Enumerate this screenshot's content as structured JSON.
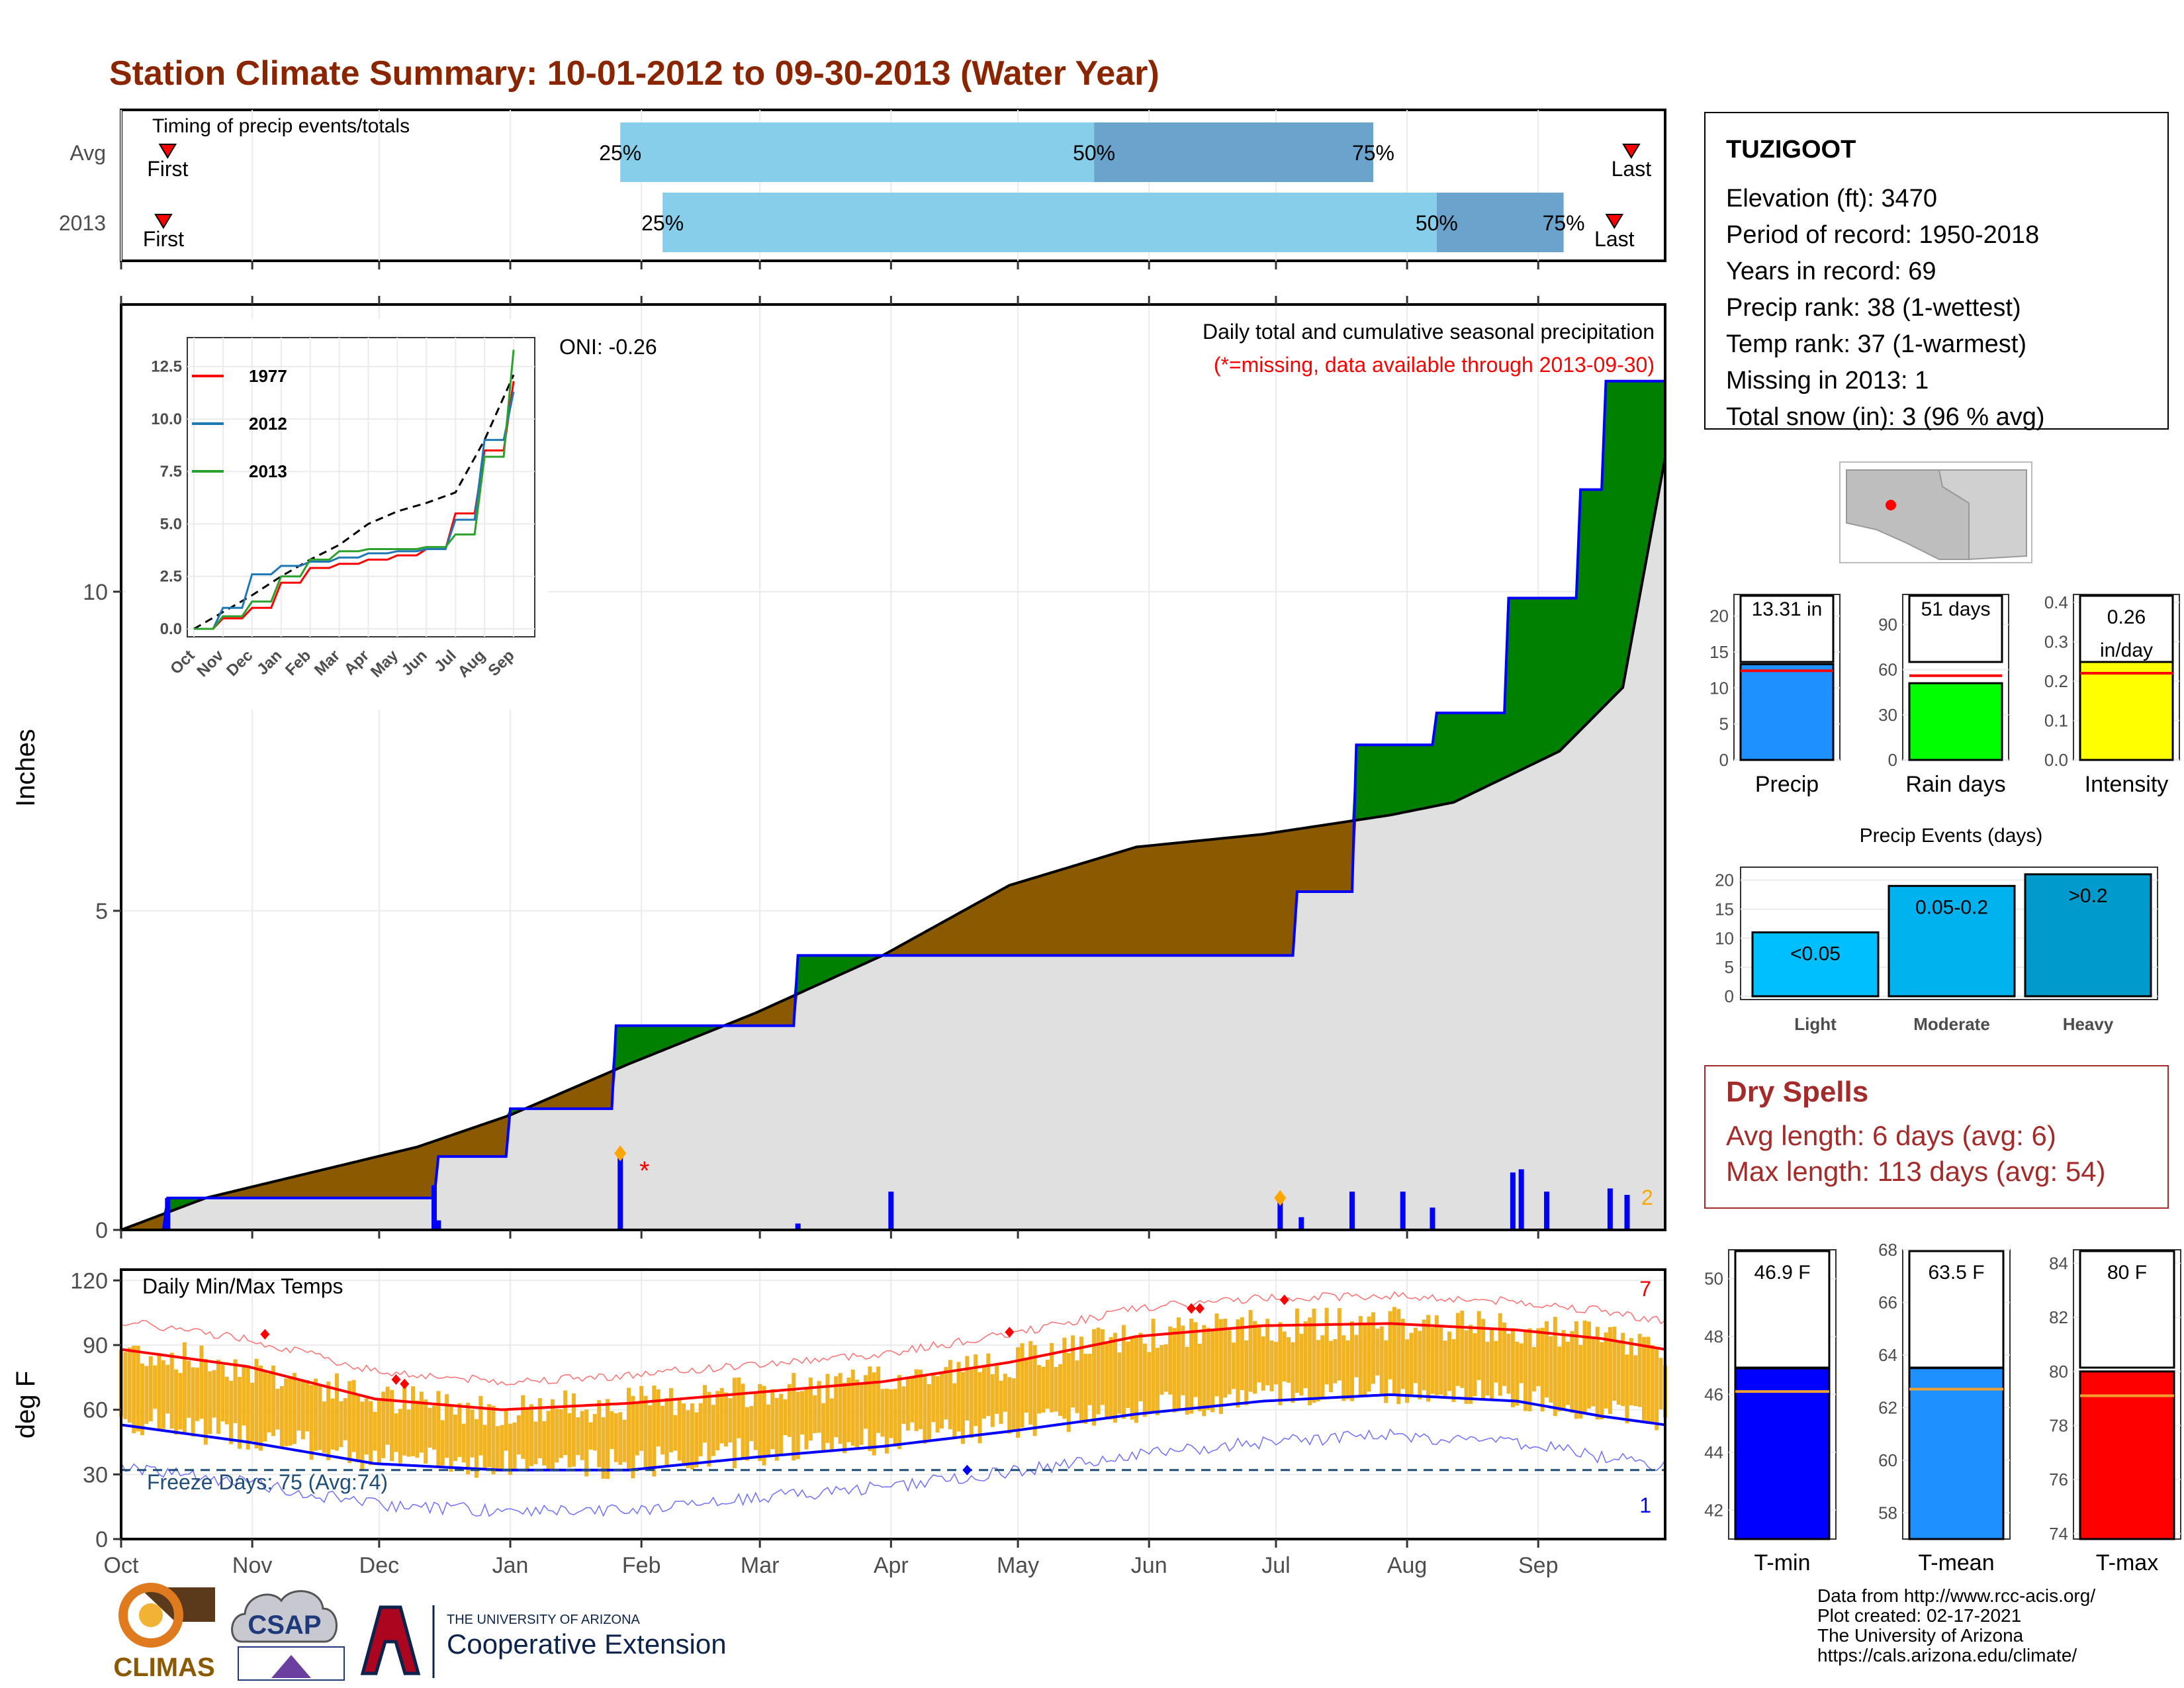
{
  "title": "Station Climate Summary: 10-01-2012 to 09-30-2013 (Water Year)",
  "colors": {
    "title": "#8b2500",
    "cum_fill": "#8b5a00",
    "wet_fill": "#008000",
    "bg_fill": "#e0e0e0",
    "precip_bar": "#0000ff",
    "tmax": "#ff0000",
    "tmin": "#0000ff",
    "range_bar": "#f0b323",
    "drought": "#a52a2a",
    "light_blue": "#87ceeb",
    "mid_blue": "#6aa4cc"
  },
  "timing": {
    "label": "Timing of precip events/totals",
    "rows": [
      {
        "name": "Avg",
        "first": "First",
        "last": "Last",
        "p25": "25%",
        "p50": "50%",
        "p75": "75%",
        "first_day": 11,
        "d25": 118,
        "d50": 230,
        "d75": 296,
        "last_day": 357
      },
      {
        "name": "2013",
        "first": "First",
        "last": "Last",
        "p25": "25%",
        "p50": "50%",
        "p75": "75%",
        "first_day": 10,
        "d25": 128,
        "d50": 311,
        "d75": 341,
        "last_day": 353
      }
    ]
  },
  "station": {
    "name": "TUZIGOOT",
    "lines": [
      "Elevation (ft): 3470",
      "Period of record: 1950-2018",
      "Years in record: 69",
      "Precip rank: 38 (1-wettest)",
      "Temp rank: 37 (1-warmest)",
      "Missing in 2013: 1",
      "Total snow (in): 3 (96 % avg)"
    ]
  },
  "precip_panel": {
    "title": "Daily total and cumulative seasonal precipitation",
    "subtitle": "(*=missing, data available through 2013-09-30)",
    "oni": "ONI: -0.26",
    "ylabel": "Inches",
    "corner_count": "2",
    "missing_mark": "*"
  },
  "temp_panel": {
    "title": "Daily Min/Max Temps",
    "ylabel": "deg F",
    "freeze": "Freeze Days: 75 (Avg:74)",
    "count_high": "7",
    "count_low": "1"
  },
  "x_months": [
    "Oct",
    "Nov",
    "Dec",
    "Jan",
    "Feb",
    "Mar",
    "Apr",
    "May",
    "Jun",
    "Jul",
    "Aug",
    "Sep"
  ],
  "inset": {
    "months": [
      "Oct",
      "Nov",
      "Dec",
      "Jan",
      "Feb",
      "Mar",
      "Apr",
      "May",
      "Jun",
      "Jul",
      "Aug",
      "Sep"
    ],
    "yticks": [
      "0.0",
      "2.5",
      "5.0",
      "7.5",
      "10.0",
      "12.5"
    ],
    "legend": [
      "1977",
      "2012",
      "2013"
    ]
  },
  "small_bars": [
    {
      "label": "Precip",
      "value_text": "13.31 in",
      "value": 13.31,
      "avg": 12.4,
      "color": "#1e90ff",
      "ymax": 23,
      "yticks": [
        "0",
        "5",
        "10",
        "15",
        "20"
      ]
    },
    {
      "label": "Rain days",
      "value_text": "51 days",
      "value": 51,
      "avg": 56,
      "color": "#00ff00",
      "ymax": 110,
      "yticks": [
        "0",
        "30",
        "60",
        "90"
      ]
    },
    {
      "label": "Intensity",
      "value_text": "0.26 in/day",
      "value": 0.26,
      "avg": 0.22,
      "color": "#ffff00",
      "ymax": 0.42,
      "yticks": [
        "0.0",
        "0.1",
        "0.2",
        "0.3",
        "0.4"
      ]
    }
  ],
  "events": {
    "title": "Precip Events (days)",
    "yticks": [
      "0",
      "5",
      "10",
      "15",
      "20"
    ],
    "bars": [
      {
        "category": "Light",
        "label": "<0.05",
        "value": 11,
        "color": "#00bfff"
      },
      {
        "category": "Moderate",
        "label": "0.05-0.2",
        "value": 19,
        "color": "#00b2ee"
      },
      {
        "category": "Heavy",
        "label": ">0.2",
        "value": 21,
        "color": "#009acd"
      }
    ]
  },
  "dry_spells": {
    "title": "Dry Spells",
    "avg": "Avg length: 6 days (avg: 6)",
    "max": "Max length: 113 days (avg: 54)"
  },
  "temp_bars": [
    {
      "label": "T-min",
      "value_text": "46.9 F",
      "value": 46.9,
      "avg": 46.1,
      "color": "#0000ff",
      "ymin": 41,
      "ymax": 51,
      "yticks": [
        "42",
        "44",
        "46",
        "48",
        "50"
      ]
    },
    {
      "label": "T-mean",
      "value_text": "63.5 F",
      "value": 63.5,
      "avg": 62.7,
      "color": "#1e90ff",
      "ymin": 57,
      "ymax": 68,
      "yticks": [
        "58",
        "60",
        "62",
        "64",
        "66",
        "68"
      ]
    },
    {
      "label": "T-max",
      "value_text": "80 F",
      "value": 80,
      "avg": 79.1,
      "color": "#ff0000",
      "ymin": 73.8,
      "ymax": 84.5,
      "yticks": [
        "74",
        "76",
        "78",
        "80",
        "82",
        "84"
      ]
    }
  ],
  "footer": {
    "lines": [
      "Data from http://www.rcc-acis.org/",
      "Plot created: 02-17-2021",
      "The University of Arizona",
      "https://cals.arizona.edu/climate/"
    ],
    "logo_climas": "CLIMAS",
    "logo_csap": "CSAP",
    "ua_small": "THE UNIVERSITY OF ARIZONA",
    "ua_big": "Cooperative Extension"
  },
  "chart_data": [
    {
      "type": "area",
      "title": "Daily total and cumulative seasonal precipitation",
      "ylabel": "Inches",
      "ylim": [
        0,
        14.5
      ],
      "x_days": [
        0,
        366
      ],
      "cumulative_avg": [
        [
          0,
          0
        ],
        [
          20,
          0.5
        ],
        [
          45,
          0.9
        ],
        [
          70,
          1.3
        ],
        [
          92,
          1.8
        ],
        [
          120,
          2.6
        ],
        [
          150,
          3.4
        ],
        [
          180,
          4.3
        ],
        [
          210,
          5.4
        ],
        [
          240,
          6.0
        ],
        [
          270,
          6.2
        ],
        [
          300,
          6.5
        ],
        [
          315,
          6.7
        ],
        [
          340,
          7.5
        ],
        [
          355,
          8.5
        ],
        [
          365,
          12.1
        ]
      ],
      "cumulative_2013": [
        [
          0,
          0
        ],
        [
          11,
          0
        ],
        [
          11,
          0.5
        ],
        [
          75,
          0.5
        ],
        [
          75,
          1.15
        ],
        [
          92,
          1.15
        ],
        [
          92,
          1.9
        ],
        [
          117,
          1.9
        ],
        [
          117,
          3.2
        ],
        [
          160,
          3.2
        ],
        [
          160,
          4.3
        ],
        [
          273,
          4.3
        ],
        [
          278,
          5.3
        ],
        [
          292,
          7.6
        ],
        [
          311,
          8.1
        ],
        [
          328,
          9.9
        ],
        [
          345,
          11.6
        ],
        [
          351,
          13.3
        ],
        [
          365,
          13.3
        ]
      ],
      "daily_precip": [
        [
          11,
          0.5
        ],
        [
          74,
          0.7
        ],
        [
          75,
          0.15
        ],
        [
          118,
          1.2
        ],
        [
          160,
          0.1
        ],
        [
          182,
          0.6
        ],
        [
          274,
          0.5
        ],
        [
          279,
          0.2
        ],
        [
          291,
          0.6
        ],
        [
          303,
          0.6
        ],
        [
          310,
          0.35
        ],
        [
          329,
          0.9
        ],
        [
          331,
          0.95
        ],
        [
          337,
          0.6
        ],
        [
          352,
          0.65
        ],
        [
          356,
          0.55
        ]
      ],
      "legend": []
    },
    {
      "type": "line",
      "title": "Daily Min/Max Temps",
      "ylabel": "deg F",
      "ylim": [
        0,
        120
      ],
      "freeze_line": 32,
      "series": [
        {
          "name": "",
          "values": [
            [
              0,
              88
            ],
            [
              30,
              80
            ],
            [
              60,
              65
            ],
            [
              90,
              60
            ],
            [
              120,
              63
            ],
            [
              150,
              68
            ],
            [
              180,
              73
            ],
            [
              210,
              82
            ],
            [
              240,
              94
            ],
            [
              270,
              99
            ],
            [
              300,
              100
            ],
            [
              330,
              97
            ],
            [
              350,
              93
            ],
            [
              365,
              88
            ]
          ]
        },
        {
          "name": "",
          "values": [
            [
              0,
              53
            ],
            [
              30,
              45
            ],
            [
              60,
              35
            ],
            [
              90,
              32
            ],
            [
              120,
              32
            ],
            [
              150,
              38
            ],
            [
              180,
              43
            ],
            [
              210,
              50
            ],
            [
              240,
              58
            ],
            [
              270,
              64
            ],
            [
              300,
              67
            ],
            [
              330,
              64
            ],
            [
              350,
              57
            ],
            [
              365,
              53
            ]
          ]
        }
      ]
    },
    {
      "type": "line",
      "title": "",
      "categories": [
        "Oct",
        "Nov",
        "Dec",
        "Jan",
        "Feb",
        "Mar",
        "Apr",
        "May",
        "Jun",
        "Jul",
        "Aug",
        "Sep"
      ],
      "ylim": [
        0,
        13.5
      ],
      "series": [
        {
          "name": "1977",
          "values": [
            0,
            0.5,
            1.0,
            2.2,
            2.9,
            3.1,
            3.3,
            3.5,
            3.8,
            5.5,
            8.5,
            11.8
          ]
        },
        {
          "name": "2012",
          "values": [
            0,
            1.0,
            2.6,
            3.0,
            3.2,
            3.4,
            3.6,
            3.7,
            3.8,
            5.2,
            9.0,
            11.3
          ]
        },
        {
          "name": "2013",
          "values": [
            0,
            0.6,
            1.3,
            2.5,
            3.3,
            3.7,
            3.8,
            3.8,
            3.9,
            4.5,
            8.2,
            13.3
          ]
        }
      ]
    },
    {
      "type": "bar",
      "title": "Precip Events (days)",
      "categories": [
        "Light",
        "Moderate",
        "Heavy"
      ],
      "values": [
        11,
        19,
        21
      ],
      "ylim": [
        0,
        21
      ]
    }
  ]
}
